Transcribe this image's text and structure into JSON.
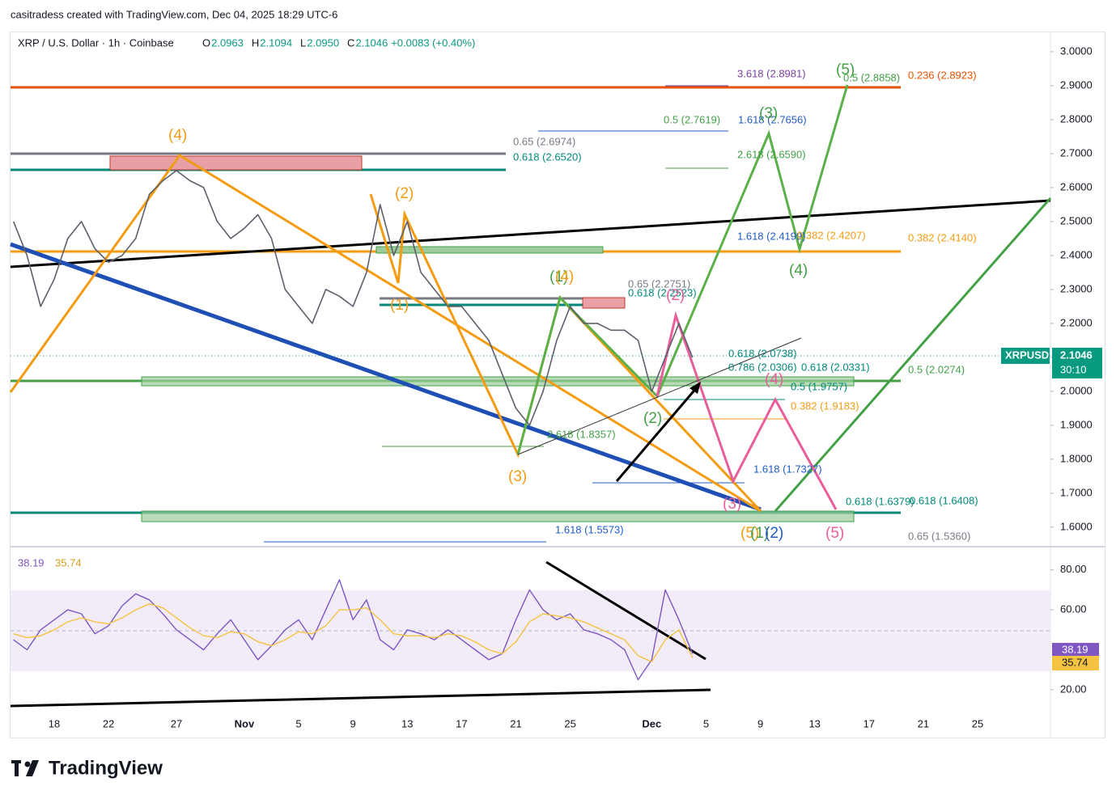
{
  "header": {
    "credit": "casitradess created with TradingView.com, Dec 04, 2025 18:29 UTC-6"
  },
  "legend": {
    "symbol": "XRP / U.S. Dollar · 1h · Coinbase",
    "fields": [
      {
        "key": "O",
        "value": "2.0963"
      },
      {
        "key": "H",
        "value": "2.1094"
      },
      {
        "key": "L",
        "value": "2.0950"
      },
      {
        "key": "C",
        "value": "2.1046"
      }
    ],
    "change": "+0.0083 (+0.40%)"
  },
  "footer": {
    "brand": "TradingView"
  },
  "chart_data": [
    {
      "type": "line",
      "color": "#5d606b",
      "ylim": [
        1.552,
        3.057
      ],
      "yticks": [
        {
          "value": 3,
          "label": "3.0000"
        },
        {
          "value": 2.9,
          "label": "2.9000"
        },
        {
          "value": 2.8,
          "label": "2.8000"
        },
        {
          "value": 2.7,
          "label": "2.7000"
        },
        {
          "value": 2.6,
          "label": "2.6000"
        },
        {
          "value": 2.5,
          "label": "2.5000"
        },
        {
          "value": 2.4,
          "label": "2.4000"
        },
        {
          "value": 2.3,
          "label": "2.3000"
        },
        {
          "value": 2.2,
          "label": "2.2000"
        },
        {
          "value": 2.1,
          "label": "2.1000"
        },
        {
          "value": 2,
          "label": "2.0000"
        },
        {
          "value": 1.9,
          "label": "1.9000"
        },
        {
          "value": 1.8,
          "label": "1.8000"
        },
        {
          "value": 1.7,
          "label": "1.7000"
        },
        {
          "value": 1.6,
          "label": "1.6000"
        }
      ],
      "values": [
        2.5,
        2.4,
        2.25,
        2.33,
        2.45,
        2.5,
        2.42,
        2.38,
        2.4,
        2.45,
        2.58,
        2.62,
        2.65,
        2.62,
        2.6,
        2.5,
        2.45,
        2.48,
        2.52,
        2.45,
        2.3,
        2.25,
        2.2,
        2.3,
        2.28,
        2.25,
        2.35,
        2.55,
        2.4,
        2.5,
        2.35,
        2.3,
        2.25,
        2.25,
        2.2,
        2.15,
        2.05,
        1.95,
        1.9,
        2.0,
        2.15,
        2.25,
        2.2,
        2.2,
        2.18,
        2.18,
        2.15,
        2.0,
        2.1,
        2.2,
        2.1,
        null,
        null,
        null,
        null,
        null,
        null,
        null,
        null,
        null,
        null,
        null,
        null,
        null,
        null,
        null,
        null,
        null,
        null,
        null,
        null,
        null,
        null,
        null,
        null,
        null,
        null
      ],
      "last_value": 2.1046,
      "symbol_tag": "XRPUSD",
      "countdown": "30:10",
      "annotations": [
        {
          "text": "(5)",
          "color": "#43a047"
        },
        {
          "text": "3.618 (2.8981)",
          "color": "#7b3fa0"
        },
        {
          "text": "0.5 (2.8858)",
          "color": "#43a047"
        },
        {
          "text": "0.236 (2.8923)",
          "color": "#e65100"
        },
        {
          "text": "(4)",
          "color": "#f39c12"
        },
        {
          "text": "0.5 (2.7619)",
          "color": "#43a047"
        },
        {
          "text": "1.618 (2.7656)",
          "color": "#1e5bc6"
        },
        {
          "text": "(3)",
          "color": "#43a047"
        },
        {
          "text": "0.65 (2.6974)",
          "color": "#787b86"
        },
        {
          "text": "0.618 (2.6520)",
          "color": "#00897b"
        },
        {
          "text": "2.618 (2.6590)",
          "color": "#43a047"
        },
        {
          "text": "(2)",
          "color": "#f39c12"
        },
        {
          "text": "1.618 (2.4199)",
          "color": "#1e5bc6"
        },
        {
          "text": "0.382 (2.4207)",
          "color": "#f39c12"
        },
        {
          "text": "0.382 (2.4140)",
          "color": "#f39c12"
        },
        {
          "text": "(4)",
          "color": "#43a047"
        },
        {
          "text": "(1)",
          "color": "#43a047"
        },
        {
          "text": "(4)",
          "color": "#f39c12"
        },
        {
          "text": "0.65 (2.2751)",
          "color": "#787b86"
        },
        {
          "text": "0.618 (2.2523)",
          "color": "#00897b"
        },
        {
          "text": "(2)",
          "color": "#e85d9a"
        },
        {
          "text": "(1)",
          "color": "#f39c12"
        },
        {
          "text": "0.618 (2.0738)",
          "color": "#00897b"
        },
        {
          "text": "0.786 (2.0306)",
          "color": "#00897b"
        },
        {
          "text": "0.618 (2.0331)",
          "color": "#00897b"
        },
        {
          "text": "0.5 (2.0274)",
          "color": "#43a047"
        },
        {
          "text": "(4)",
          "color": "#e85d9a"
        },
        {
          "text": "0.5 (1.9757)",
          "color": "#00897b"
        },
        {
          "text": "0.382 (1.9183)",
          "color": "#f39c12"
        },
        {
          "text": "(2)",
          "color": "#43a047"
        },
        {
          "text": "2.618 (1.8357)",
          "color": "#43a047"
        },
        {
          "text": "(3)",
          "color": "#f39c12"
        },
        {
          "text": "1.618 (1.7327)",
          "color": "#1e5bc6"
        },
        {
          "text": "(3)",
          "color": "#e85d9a"
        },
        {
          "text": "0.618 (1.6379)",
          "color": "#00897b"
        },
        {
          "text": "0.618 (1.6408)",
          "color": "#00897b"
        },
        {
          "text": "1.618 (1.5573)",
          "color": "#1e5bc6"
        },
        {
          "text": "(5)",
          "color": "#f39c12"
        },
        {
          "text": "(1)",
          "color": "#43a047"
        },
        {
          "text": "(2)",
          "color": "#1e5bc6"
        },
        {
          "text": "(5)",
          "color": "#e85d9a"
        },
        {
          "text": "0.65 (1.5360)",
          "color": "#787b86"
        }
      ]
    },
    {
      "type": "line",
      "categories": [
        null,
        null,
        null,
        "18",
        null,
        null,
        null,
        "22",
        null,
        null,
        null,
        null,
        "27",
        null,
        null,
        null,
        null,
        "Nov",
        null,
        null,
        null,
        "5",
        null,
        null,
        null,
        "9",
        null,
        null,
        null,
        "13",
        null,
        null,
        null,
        "17",
        null,
        null,
        null,
        "21",
        null,
        null,
        null,
        "25",
        null,
        null,
        null,
        null,
        null,
        "Dec",
        null,
        null,
        null,
        "5",
        null,
        null,
        null,
        "9",
        null,
        null,
        null,
        "13",
        null,
        null,
        null,
        "17",
        null,
        null,
        null,
        "21",
        null,
        null,
        null,
        "25",
        null,
        null,
        null,
        null,
        null
      ],
      "ylim": [
        9,
        90
      ],
      "yticks": [
        {
          "value": 80,
          "label": "80.00"
        },
        {
          "value": 60,
          "label": "60.00"
        },
        {
          "value": 20,
          "label": "20.00"
        }
      ],
      "band": [
        30,
        70
      ],
      "series": [
        {
          "color": "#7e57c2",
          "values": [
            45,
            40,
            50,
            55,
            60,
            58,
            48,
            52,
            62,
            68,
            65,
            58,
            50,
            45,
            40,
            48,
            55,
            45,
            35,
            42,
            50,
            55,
            45,
            60,
            75,
            55,
            65,
            45,
            40,
            50,
            48,
            45,
            50,
            45,
            40,
            35,
            38,
            55,
            70,
            60,
            55,
            58,
            50,
            48,
            45,
            40,
            25,
            35,
            70,
            55,
            38,
            null,
            null,
            null,
            null,
            null,
            null,
            null,
            null,
            null,
            null,
            null,
            null,
            null,
            null,
            null,
            null,
            null,
            null,
            null,
            null,
            null,
            null,
            null,
            null,
            null,
            null
          ]
        },
        {
          "color": "#f5c342",
          "values": [
            48,
            46,
            47,
            50,
            54,
            56,
            54,
            53,
            56,
            60,
            63,
            61,
            56,
            51,
            47,
            46,
            49,
            48,
            44,
            42,
            45,
            49,
            48,
            52,
            60,
            60,
            61,
            55,
            48,
            47,
            47,
            46,
            48,
            47,
            44,
            40,
            38,
            44,
            54,
            58,
            57,
            56,
            54,
            51,
            48,
            45,
            37,
            34,
            45,
            50,
            36,
            null,
            null,
            null,
            null,
            null,
            null,
            null,
            null,
            null,
            null,
            null,
            null,
            null,
            null,
            null,
            null,
            null,
            null,
            null,
            null,
            null,
            null,
            null,
            null,
            null,
            null
          ]
        }
      ],
      "last_values": [
        38.19,
        35.74
      ]
    }
  ]
}
